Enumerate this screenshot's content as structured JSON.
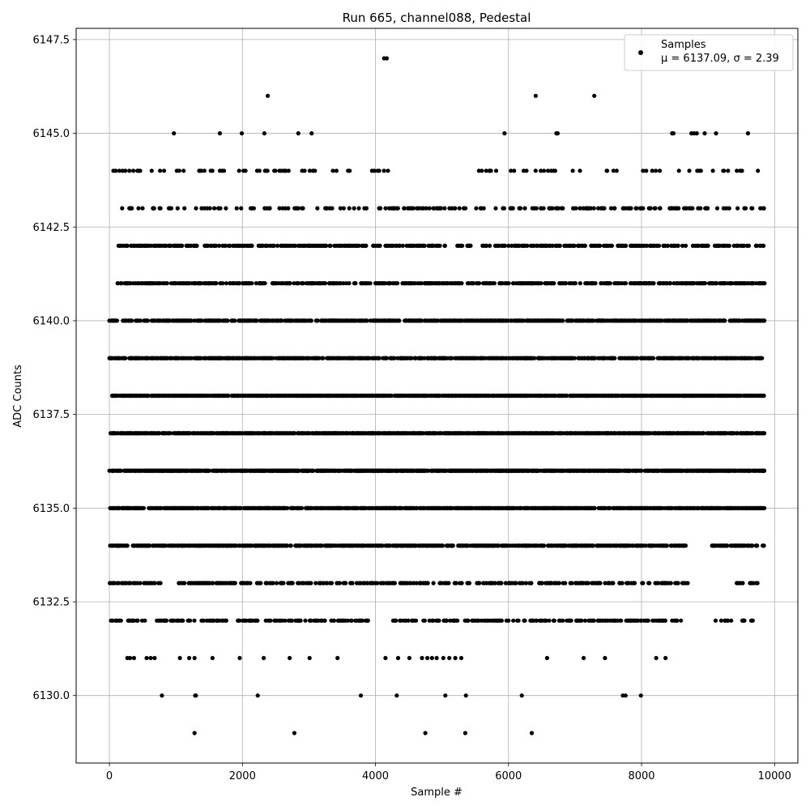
{
  "chart_data": {
    "type": "scatter",
    "title": "Run 665, channel088, Pedestal",
    "xlabel": "Sample #",
    "ylabel": "ADC Counts",
    "xlim": [
      -500,
      10350
    ],
    "ylim": [
      6128.2,
      6147.8
    ],
    "x_ticks": [
      0,
      2000,
      4000,
      6000,
      8000,
      10000
    ],
    "x_tick_labels": [
      "0",
      "2000",
      "4000",
      "6000",
      "8000",
      "10000"
    ],
    "y_ticks": [
      6130.0,
      6132.5,
      6135.0,
      6137.5,
      6140.0,
      6142.5,
      6145.0,
      6147.5
    ],
    "y_tick_labels": [
      "6130.0",
      "6132.5",
      "6135.0",
      "6137.5",
      "6140.0",
      "6142.5",
      "6145.0",
      "6147.5"
    ],
    "grid": true,
    "legend_position": "top-right",
    "marker_color": "#000000",
    "series": [
      {
        "name": "Samples",
        "legend_stats": "μ = 6137.09, σ = 2.39",
        "x_range": [
          0,
          9850
        ],
        "levels": [
          {
            "y": 6129,
            "x": [
              1280,
              2780,
              4750,
              5350,
              6350
            ]
          },
          {
            "y": 6130,
            "x": [
              790,
              1290,
              1300,
              2230,
              3780,
              4320,
              5050,
              5360,
              6200,
              7720,
              7760,
              7990
            ]
          },
          {
            "y": 6131,
            "x": [
              270,
              310,
              370,
              560,
              620,
              680,
              1060,
              1200,
              1280,
              1550,
              1960,
              2320,
              2710,
              3010,
              3430,
              4150,
              4340,
              4510,
              4700,
              4780,
              4850,
              4920,
              5020,
              5110,
              5200,
              5290,
              6580,
              7130,
              7450,
              8220,
              8360
            ]
          },
          {
            "y": 6147,
            "x": [
              4130,
              4170
            ]
          },
          {
            "y": 6146,
            "x": [
              2380,
              6410,
              7290
            ]
          },
          {
            "y": 6145,
            "x": [
              970,
              1660,
              1990,
              2330,
              2840,
              3040,
              5940,
              6720,
              6740,
              8460,
              8480,
              8750,
              8790,
              8830,
              8950,
              9120,
              9600
            ]
          }
        ],
        "dense_levels": [
          {
            "y": 6132,
            "x_from": 0,
            "x_to": 9700,
            "gaps": [
              [
                3900,
                4250
              ],
              [
                8700,
                9080
              ]
            ],
            "density": 0.35
          },
          {
            "y": 6133,
            "x_from": 0,
            "x_to": 9750,
            "gaps": [
              [
                8700,
                9380
              ]
            ],
            "density": 0.4
          },
          {
            "y": 6134,
            "x_from": 0,
            "x_to": 9850,
            "gaps": [
              [
                8680,
                9050
              ]
            ],
            "density": 0.7
          },
          {
            "y": 6135,
            "x_from": 0,
            "x_to": 9850,
            "gaps": [],
            "density": 0.85
          },
          {
            "y": 6136,
            "x_from": 0,
            "x_to": 9850,
            "gaps": [],
            "density": 1.0
          },
          {
            "y": 6137,
            "x_from": 0,
            "x_to": 9850,
            "gaps": [],
            "density": 1.0
          },
          {
            "y": 6138,
            "x_from": 0,
            "x_to": 9850,
            "gaps": [],
            "density": 0.95
          },
          {
            "y": 6139,
            "x_from": 0,
            "x_to": 9820,
            "gaps": [],
            "density": 0.8
          },
          {
            "y": 6140,
            "x_from": 0,
            "x_to": 9850,
            "gaps": [],
            "density": 0.75
          },
          {
            "y": 6141,
            "x_from": 100,
            "x_to": 9850,
            "gaps": [],
            "density": 0.55
          },
          {
            "y": 6142,
            "x_from": 120,
            "x_to": 9850,
            "gaps": [],
            "density": 0.4
          },
          {
            "y": 6143,
            "x_from": 150,
            "x_to": 9850,
            "gaps": [],
            "density": 0.25
          },
          {
            "y": 6144,
            "x_from": 0,
            "x_to": 9850,
            "gaps": [
              [
                4200,
                5500
              ]
            ],
            "density": 0.12
          }
        ]
      }
    ]
  }
}
